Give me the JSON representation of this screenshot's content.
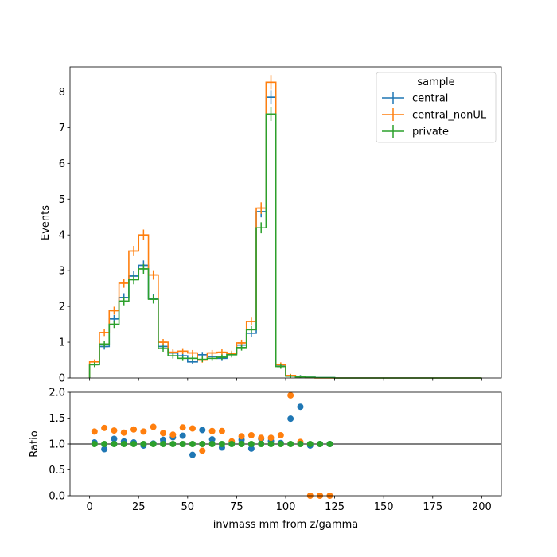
{
  "chart_data": [
    {
      "type": "line",
      "panel": "main",
      "ylabel": "Events",
      "xlim": [
        -10,
        210
      ],
      "ylim": [
        0,
        8.7
      ],
      "bin_width": 5,
      "yticks": [
        0,
        1,
        2,
        3,
        4,
        5,
        6,
        7,
        8
      ],
      "legend": {
        "title": "sample",
        "placement": "top-right"
      },
      "series": [
        {
          "name": "central",
          "color": "#1f77b4",
          "x": [
            2.5,
            7.5,
            12.5,
            17.5,
            22.5,
            27.5,
            32.5,
            37.5,
            42.5,
            47.5,
            52.5,
            57.5,
            62.5,
            67.5,
            72.5,
            77.5,
            82.5,
            87.5,
            92.5,
            97.5,
            102.5,
            107.5,
            112.5,
            117.5,
            122.5,
            127.5,
            132.5,
            137.5,
            142.5,
            147.5,
            152.5,
            157.5,
            162.5,
            167.5,
            172.5,
            177.5,
            182.5,
            187.5,
            192.5,
            197.5
          ],
          "values": [
            0.38,
            0.88,
            1.65,
            2.25,
            2.85,
            3.15,
            2.22,
            0.88,
            0.7,
            0.62,
            0.45,
            0.65,
            0.6,
            0.55,
            0.68,
            0.92,
            1.25,
            4.65,
            7.85,
            0.33,
            0.06,
            0.04,
            0.02,
            0.01,
            0.01,
            0,
            0,
            0,
            0,
            0,
            0,
            0,
            0,
            0,
            0,
            0,
            0,
            0,
            0,
            0
          ]
        },
        {
          "name": "central_nonUL",
          "color": "#ff7f0e",
          "x": [
            2.5,
            7.5,
            12.5,
            17.5,
            22.5,
            27.5,
            32.5,
            37.5,
            42.5,
            47.5,
            52.5,
            57.5,
            62.5,
            67.5,
            72.5,
            77.5,
            82.5,
            87.5,
            92.5,
            97.5,
            102.5,
            107.5,
            112.5,
            117.5,
            122.5,
            127.5,
            132.5,
            137.5,
            142.5,
            147.5,
            152.5,
            157.5,
            162.5,
            167.5,
            172.5,
            177.5,
            182.5,
            187.5,
            192.5,
            197.5
          ],
          "values": [
            0.45,
            1.27,
            1.88,
            2.65,
            3.55,
            4.0,
            2.88,
            1.0,
            0.72,
            0.75,
            0.7,
            0.5,
            0.7,
            0.72,
            0.68,
            0.98,
            1.58,
            4.75,
            8.27,
            0.37,
            0.07,
            0.03,
            0.01,
            0,
            0,
            0,
            0,
            0,
            0,
            0,
            0,
            0,
            0,
            0,
            0,
            0,
            0,
            0,
            0,
            0
          ]
        },
        {
          "name": "private",
          "color": "#2ca02c",
          "x": [
            2.5,
            7.5,
            12.5,
            17.5,
            22.5,
            27.5,
            32.5,
            37.5,
            42.5,
            47.5,
            52.5,
            57.5,
            62.5,
            67.5,
            72.5,
            77.5,
            82.5,
            87.5,
            92.5,
            97.5,
            102.5,
            107.5,
            112.5,
            117.5,
            122.5,
            127.5,
            132.5,
            137.5,
            142.5,
            147.5,
            152.5,
            157.5,
            162.5,
            167.5,
            172.5,
            177.5,
            182.5,
            187.5,
            192.5,
            197.5
          ],
          "values": [
            0.37,
            0.95,
            1.5,
            2.15,
            2.75,
            3.05,
            2.2,
            0.82,
            0.62,
            0.55,
            0.55,
            0.52,
            0.55,
            0.58,
            0.65,
            0.85,
            1.35,
            4.2,
            7.38,
            0.32,
            0.05,
            0.03,
            0.02,
            0.01,
            0.01,
            0,
            0,
            0,
            0,
            0,
            0,
            0,
            0,
            0,
            0,
            0,
            0,
            0,
            0,
            0
          ]
        }
      ]
    },
    {
      "type": "scatter",
      "panel": "ratio",
      "xlabel": "invmass mm from z/gamma",
      "ylabel": "Ratio",
      "xlim": [
        -10,
        210
      ],
      "ylim": [
        0,
        2.0
      ],
      "xticks": [
        0,
        25,
        50,
        75,
        100,
        125,
        150,
        175,
        200
      ],
      "yticks": [
        "0.0",
        "0.5",
        "1.0",
        "1.5",
        "2.0"
      ],
      "reference_line": 1.0,
      "series": [
        {
          "name": "central",
          "color": "#1f77b4",
          "x": [
            2.5,
            7.5,
            12.5,
            17.5,
            22.5,
            27.5,
            32.5,
            37.5,
            42.5,
            47.5,
            52.5,
            57.5,
            62.5,
            67.5,
            72.5,
            77.5,
            82.5,
            87.5,
            92.5,
            97.5,
            102.5,
            107.5,
            112.5,
            117.5,
            122.5
          ],
          "values": [
            1.03,
            0.9,
            1.1,
            1.05,
            1.03,
            0.97,
            1.01,
            1.08,
            1.13,
            1.16,
            0.79,
            1.27,
            1.09,
            0.93,
            1.03,
            1.08,
            0.91,
            1.1,
            1.06,
            1.02,
            1.49,
            1.72,
            0.97,
            1.0,
            1.0
          ]
        },
        {
          "name": "central_nonUL",
          "color": "#ff7f0e",
          "x": [
            2.5,
            7.5,
            12.5,
            17.5,
            22.5,
            27.5,
            32.5,
            37.5,
            42.5,
            47.5,
            52.5,
            57.5,
            62.5,
            67.5,
            72.5,
            77.5,
            82.5,
            87.5,
            92.5,
            97.5,
            102.5,
            107.5,
            112.5,
            117.5,
            122.5
          ],
          "values": [
            1.24,
            1.31,
            1.26,
            1.22,
            1.28,
            1.24,
            1.33,
            1.21,
            1.18,
            1.32,
            1.3,
            0.87,
            1.25,
            1.25,
            1.05,
            1.15,
            1.17,
            1.12,
            1.12,
            1.17,
            1.94,
            1.04,
            0.0,
            0.0,
            0.0
          ]
        },
        {
          "name": "private",
          "color": "#2ca02c",
          "x": [
            2.5,
            7.5,
            12.5,
            17.5,
            22.5,
            27.5,
            32.5,
            37.5,
            42.5,
            47.5,
            52.5,
            57.5,
            62.5,
            67.5,
            72.5,
            77.5,
            82.5,
            87.5,
            92.5,
            97.5,
            102.5,
            107.5,
            112.5,
            117.5,
            122.5
          ],
          "values": [
            1,
            1,
            1,
            1,
            1,
            1,
            1,
            1,
            1,
            1,
            1,
            1,
            1,
            1,
            1,
            1,
            1,
            1,
            1,
            1,
            1,
            1,
            1,
            1,
            1
          ]
        }
      ]
    }
  ]
}
